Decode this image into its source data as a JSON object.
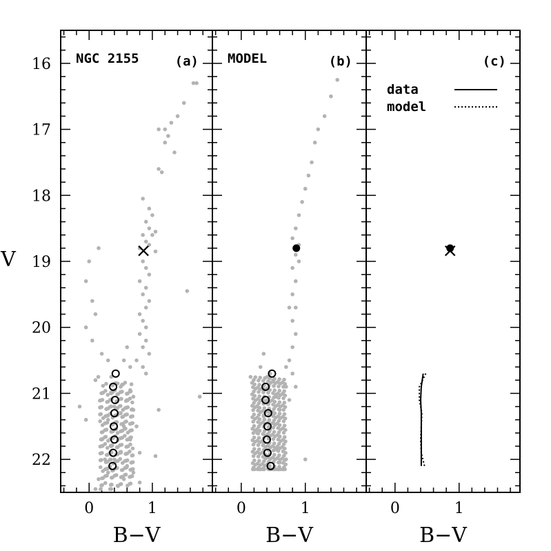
{
  "chart_data": [
    {
      "type": "scatter",
      "panel_tag": "(a)",
      "title": "NGC 2155",
      "xlabel": "B−V",
      "ylabel": "V",
      "xlim": [
        -0.45,
        1.95
      ],
      "ylim": [
        22.5,
        15.5
      ],
      "y_inverted": true,
      "xticks": [
        0,
        1
      ],
      "yticks": [
        16,
        17,
        18,
        19,
        20,
        21,
        22
      ],
      "series": [
        {
          "role": "stars",
          "color": "#b3b3b3",
          "points": [
            [
              1.65,
              16.3
            ],
            [
              1.7,
              16.3
            ],
            [
              1.5,
              16.6
            ],
            [
              1.4,
              16.8
            ],
            [
              1.1,
              17.0
            ],
            [
              1.2,
              17.0
            ],
            [
              1.3,
              16.9
            ],
            [
              1.25,
              17.1
            ],
            [
              1.2,
              17.2
            ],
            [
              1.35,
              17.35
            ],
            [
              1.1,
              17.6
            ],
            [
              1.15,
              17.65
            ],
            [
              0.85,
              18.05
            ],
            [
              0.95,
              18.2
            ],
            [
              1.0,
              18.3
            ],
            [
              0.9,
              18.4
            ],
            [
              0.95,
              18.5
            ],
            [
              1.0,
              18.6
            ],
            [
              1.05,
              18.55
            ],
            [
              0.85,
              18.6
            ],
            [
              0.9,
              18.7
            ],
            [
              0.8,
              18.8
            ],
            [
              0.95,
              18.75
            ],
            [
              1.05,
              18.85
            ],
            [
              0.15,
              18.8
            ],
            [
              0.85,
              19.0
            ],
            [
              0.9,
              19.1
            ],
            [
              0.95,
              19.2
            ],
            [
              0.8,
              19.3
            ],
            [
              0.9,
              19.4
            ],
            [
              0.85,
              19.5
            ],
            [
              0.95,
              19.6
            ],
            [
              0.9,
              19.7
            ],
            [
              0.8,
              19.8
            ],
            [
              0.85,
              19.9
            ],
            [
              0.9,
              20.0
            ],
            [
              0.8,
              20.1
            ],
            [
              0.9,
              20.2
            ],
            [
              0.85,
              20.3
            ],
            [
              0.95,
              20.4
            ],
            [
              0.75,
              20.5
            ],
            [
              0.85,
              20.6
            ],
            [
              0.9,
              20.7
            ],
            [
              0.0,
              19.0
            ],
            [
              -0.05,
              19.3
            ],
            [
              0.05,
              19.6
            ],
            [
              0.1,
              19.8
            ],
            [
              -0.05,
              20.0
            ],
            [
              0.05,
              20.2
            ],
            [
              0.2,
              20.4
            ],
            [
              0.3,
              20.5
            ],
            [
              1.55,
              19.45
            ],
            [
              0.6,
              20.3
            ],
            [
              0.55,
              20.5
            ],
            [
              0.65,
              20.6
            ],
            [
              1.75,
              21.05
            ],
            [
              -0.05,
              21.4
            ],
            [
              -0.15,
              21.2
            ],
            [
              0.1,
              20.8
            ],
            [
              1.1,
              21.25
            ],
            [
              1.05,
              21.95
            ],
            [
              0.35,
              20.75
            ],
            [
              0.45,
              20.85
            ],
            [
              0.5,
              20.9
            ],
            [
              0.35,
              21.0
            ],
            [
              0.6,
              21.1
            ],
            [
              0.4,
              21.2
            ],
            [
              0.5,
              21.3
            ],
            [
              0.7,
              21.25
            ],
            [
              0.3,
              21.4
            ],
            [
              0.55,
              21.5
            ],
            [
              0.45,
              21.6
            ],
            [
              0.65,
              21.7
            ],
            [
              0.35,
              21.8
            ],
            [
              0.5,
              21.9
            ],
            [
              0.4,
              22.0
            ],
            [
              0.6,
              22.1
            ],
            [
              0.3,
              22.2
            ],
            [
              0.55,
              22.3
            ],
            [
              0.45,
              22.4
            ],
            [
              0.35,
              22.45
            ],
            [
              0.75,
              21.5
            ],
            [
              0.8,
              21.9
            ],
            [
              0.2,
              21.7
            ],
            [
              0.25,
              22.0
            ],
            [
              0.15,
              22.3
            ],
            [
              0.7,
              22.2
            ],
            [
              0.8,
              22.35
            ],
            [
              0.1,
              22.45
            ],
            [
              0.65,
              20.95
            ],
            [
              0.7,
              21.05
            ]
          ]
        },
        {
          "role": "red clump",
          "marker": "x",
          "points": [
            [
              0.86,
              18.84
            ]
          ]
        },
        {
          "role": "ridge line",
          "marker": "open-circle",
          "points": [
            [
              0.42,
              20.7
            ],
            [
              0.38,
              20.9
            ],
            [
              0.41,
              21.1
            ],
            [
              0.4,
              21.3
            ],
            [
              0.39,
              21.5
            ],
            [
              0.4,
              21.7
            ],
            [
              0.38,
              21.9
            ],
            [
              0.37,
              22.1
            ]
          ]
        }
      ]
    },
    {
      "type": "scatter",
      "panel_tag": "(b)",
      "title": "MODEL",
      "xlabel": "B−V",
      "xlim": [
        -0.45,
        1.95
      ],
      "ylim": [
        22.5,
        15.5
      ],
      "xticks": [
        0,
        1
      ],
      "series": [
        {
          "role": "stars",
          "color": "#b3b3b3",
          "points": [
            [
              1.5,
              16.25
            ],
            [
              1.4,
              16.5
            ],
            [
              1.3,
              16.8
            ],
            [
              1.2,
              17.0
            ],
            [
              1.15,
              17.2
            ],
            [
              1.1,
              17.5
            ],
            [
              1.05,
              17.7
            ],
            [
              1.0,
              17.9
            ],
            [
              0.95,
              18.1
            ],
            [
              0.9,
              18.3
            ],
            [
              0.85,
              18.5
            ],
            [
              0.8,
              18.65
            ],
            [
              0.9,
              18.75
            ],
            [
              0.85,
              18.9
            ],
            [
              0.8,
              19.1
            ],
            [
              0.85,
              19.3
            ],
            [
              0.8,
              19.5
            ],
            [
              0.85,
              19.7
            ],
            [
              0.8,
              19.9
            ],
            [
              0.85,
              20.1
            ],
            [
              0.8,
              20.3
            ],
            [
              0.75,
              20.5
            ],
            [
              0.8,
              20.7
            ],
            [
              0.85,
              20.9
            ],
            [
              0.75,
              21.1
            ],
            [
              0.7,
              20.6
            ],
            [
              0.9,
              19.0
            ],
            [
              0.75,
              19.7
            ],
            [
              0.35,
              20.4
            ],
            [
              0.3,
              20.6
            ],
            [
              0.45,
              20.7
            ],
            [
              0.5,
              20.8
            ],
            [
              0.35,
              20.95
            ],
            [
              0.55,
              21.05
            ],
            [
              0.4,
              21.15
            ],
            [
              0.6,
              21.25
            ],
            [
              0.35,
              21.35
            ],
            [
              0.5,
              21.45
            ],
            [
              0.45,
              21.55
            ],
            [
              0.6,
              21.65
            ],
            [
              0.35,
              21.75
            ],
            [
              0.55,
              21.85
            ],
            [
              0.4,
              21.95
            ],
            [
              0.6,
              22.05
            ],
            [
              0.3,
              22.15
            ],
            [
              0.25,
              21.6
            ],
            [
              0.25,
              21.2
            ],
            [
              0.7,
              22.0
            ],
            [
              1.0,
              22.0
            ],
            [
              0.65,
              21.0
            ],
            [
              0.7,
              20.9
            ]
          ]
        },
        {
          "role": "red clump",
          "marker": "filled-circle",
          "points": [
            [
              0.86,
              18.8
            ]
          ]
        },
        {
          "role": "ridge line",
          "marker": "open-circle",
          "points": [
            [
              0.48,
              20.7
            ],
            [
              0.38,
              20.9
            ],
            [
              0.38,
              21.1
            ],
            [
              0.42,
              21.3
            ],
            [
              0.41,
              21.5
            ],
            [
              0.4,
              21.7
            ],
            [
              0.41,
              21.9
            ],
            [
              0.46,
              22.1
            ]
          ]
        }
      ]
    },
    {
      "type": "line",
      "panel_tag": "(c)",
      "xlabel": "B−V",
      "xlim": [
        -0.45,
        1.95
      ],
      "ylim": [
        22.5,
        15.5
      ],
      "xticks": [
        0,
        1
      ],
      "legend": {
        "position": "top-right"
      },
      "series": [
        {
          "name": "data",
          "style": "solid",
          "points": [
            [
              0.44,
              20.7
            ],
            [
              0.41,
              20.9
            ],
            [
              0.4,
              21.1
            ],
            [
              0.41,
              21.3
            ],
            [
              0.41,
              21.5
            ],
            [
              0.41,
              21.7
            ],
            [
              0.41,
              21.9
            ],
            [
              0.41,
              22.1
            ]
          ]
        },
        {
          "name": "model",
          "style": "dotted",
          "points": [
            [
              0.48,
              20.7
            ],
            [
              0.38,
              20.9
            ],
            [
              0.38,
              21.1
            ],
            [
              0.42,
              21.3
            ],
            [
              0.41,
              21.5
            ],
            [
              0.4,
              21.7
            ],
            [
              0.41,
              21.9
            ],
            [
              0.46,
              22.1
            ]
          ]
        }
      ],
      "markers": [
        {
          "marker": "filled-circle",
          "x": 0.86,
          "y": 18.8
        },
        {
          "marker": "x",
          "x": 0.86,
          "y": 18.84
        }
      ]
    }
  ]
}
